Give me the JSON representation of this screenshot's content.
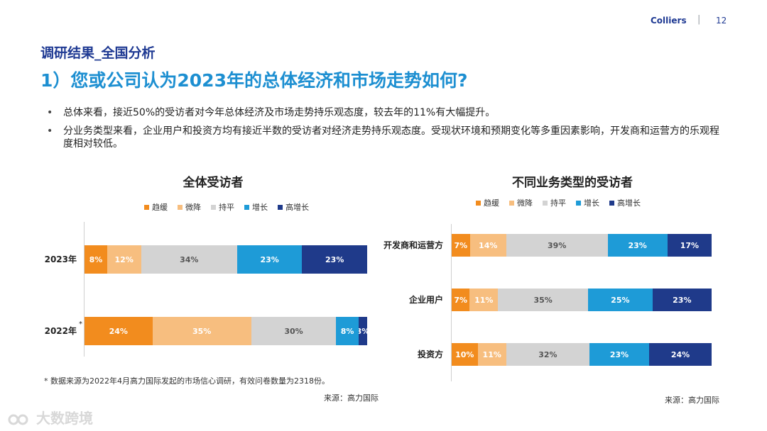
{
  "header": {
    "brand": "Colliers",
    "separator": "|",
    "page_number": "12"
  },
  "kicker": "调研结果_全国分析",
  "title": "1）您或公司认为2023年的总体经济和市场走势如何?",
  "bullets": [
    "总体来看，接近50%的受访者对今年总体经济及市场走势持乐观态度，较去年的11%有大幅提升。",
    "分业务类型来看，企业用户和投资方均有接近半数的受访者对经济走势持乐观态度。受现状环境和预期变化等多重因素影响，开发商和运营方的乐观程度相对较低。"
  ],
  "bullet_marker": "•",
  "colors": {
    "趋缓": "#f28c1e",
    "微降": "#f7be7f",
    "持平": "#d3d3d3",
    "增长": "#1e9bd7",
    "高增长": "#1f3a8a"
  },
  "chart_data": [
    {
      "type": "bar",
      "orientation": "horizontal",
      "stacked": true,
      "title": "全体受访者",
      "legend": [
        "趋缓",
        "微降",
        "持平",
        "增长",
        "高增长"
      ],
      "legend_position": "top",
      "categories": [
        "2023年",
        "2022年"
      ],
      "category_mark": {
        "2022年": "*"
      },
      "series": [
        {
          "name": "趋缓",
          "values": [
            8,
            24
          ]
        },
        {
          "name": "微降",
          "values": [
            12,
            35
          ]
        },
        {
          "name": "持平",
          "values": [
            34,
            30
          ]
        },
        {
          "name": "增长",
          "values": [
            23,
            8
          ]
        },
        {
          "name": "高增长",
          "values": [
            23,
            3
          ]
        }
      ],
      "data_labels": [
        [
          "8%",
          "12%",
          "34%",
          "23%",
          "23%"
        ],
        [
          "24%",
          "35%",
          "30%",
          "8%",
          "3%"
        ]
      ],
      "footnote": "* 数据来源为2022年4月高力国际发起的市场信心调研，有效问卷数量为2318份。",
      "source": "来源：高力国际"
    },
    {
      "type": "bar",
      "orientation": "horizontal",
      "stacked": true,
      "title": "不同业务类型的受访者",
      "legend": [
        "趋缓",
        "微降",
        "持平",
        "增长",
        "高增长"
      ],
      "legend_position": "top",
      "categories": [
        "开发商和运营方",
        "企业用户",
        "投资方"
      ],
      "series": [
        {
          "name": "趋缓",
          "values": [
            7,
            7,
            10
          ]
        },
        {
          "name": "微降",
          "values": [
            14,
            11,
            11
          ]
        },
        {
          "name": "持平",
          "values": [
            39,
            35,
            32
          ]
        },
        {
          "name": "增长",
          "values": [
            23,
            25,
            23
          ]
        },
        {
          "name": "高增长",
          "values": [
            17,
            23,
            24
          ]
        }
      ],
      "data_labels": [
        [
          "7%",
          "14%",
          "39%",
          "23%",
          "17%"
        ],
        [
          "7%",
          "11%",
          "35%",
          "25%",
          "23%"
        ],
        [
          "10%",
          "11%",
          "32%",
          "23%",
          "24%"
        ]
      ],
      "source": "来源：高力国际"
    }
  ],
  "watermark": "大数跨境"
}
